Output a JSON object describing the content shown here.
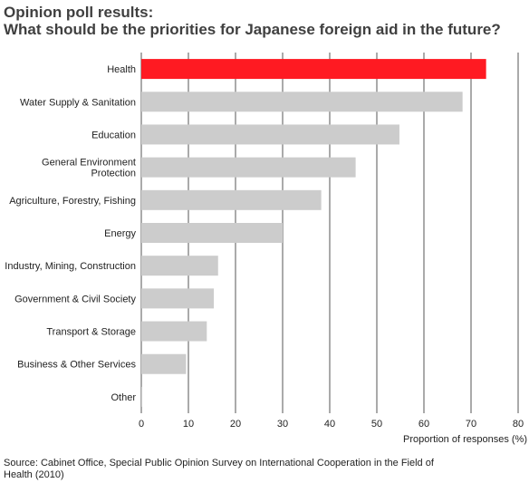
{
  "title_line1": "Opinion poll results:",
  "title_line2": "What should be the priorities for Japanese foreign aid in the future?",
  "source": "Source: Cabinet Office, Special Public Opinion Survey on International Cooperation in the Field of Health (2010)",
  "colors": {
    "highlight": "#ff1a22",
    "bar": "#cccccc",
    "grid": "#555555"
  },
  "chart_data": {
    "type": "bar",
    "orientation": "horizontal",
    "categories": [
      [
        "Health"
      ],
      [
        "Water Supply & Sanitation"
      ],
      [
        "Education"
      ],
      [
        "General Environment",
        "Protection"
      ],
      [
        "Agriculture, Forestry, Fishing"
      ],
      [
        "Energy"
      ],
      [
        "Industry, Mining, Construction"
      ],
      [
        "Government & Civil Society"
      ],
      [
        "Transport & Storage"
      ],
      [
        "Business & Other Services"
      ],
      [
        "Other"
      ]
    ],
    "values": [
      73.2,
      68.2,
      54.8,
      45.5,
      38.2,
      30.0,
      16.3,
      15.4,
      13.9,
      9.5,
      0.2
    ],
    "highlight_index": 0,
    "xlabel": "Proportion of responses (%)",
    "xlim": [
      0,
      80
    ],
    "xticks": [
      "0",
      "10",
      "20",
      "30",
      "40",
      "50",
      "60",
      "70",
      "80"
    ],
    "grid": true
  }
}
